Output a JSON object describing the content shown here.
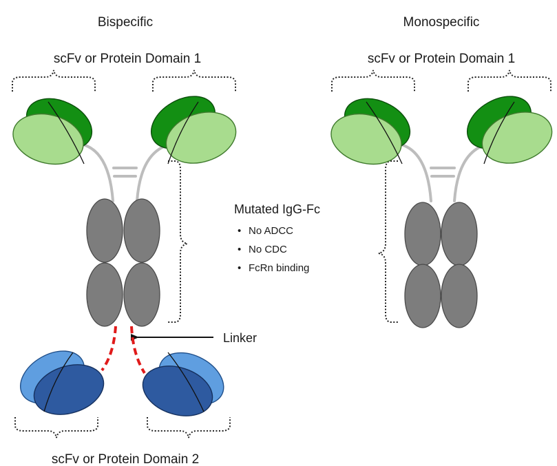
{
  "left": {
    "title": "Bispecific",
    "top_domain_label": "scFv or Protein Domain 1",
    "bottom_domain_label": "scFv or Protein Domain 2"
  },
  "right": {
    "title": "Monospecific",
    "top_domain_label": "scFv or Protein Domain 1"
  },
  "fc_annotation": {
    "heading": "Mutated IgG-Fc",
    "bullets": [
      "No ADCC",
      "No CDC",
      "FcRn binding"
    ]
  },
  "linker_label": "Linker",
  "colors": {
    "domain1_dark": "#138f13",
    "domain1_light": "#a8dc8e",
    "domain2_dark": "#2e5aa0",
    "domain2_light": "#5f9ee0",
    "fc_gray": "#7d7d7d",
    "hinge": "#bdbdbd",
    "linker": "#e01a1a"
  }
}
